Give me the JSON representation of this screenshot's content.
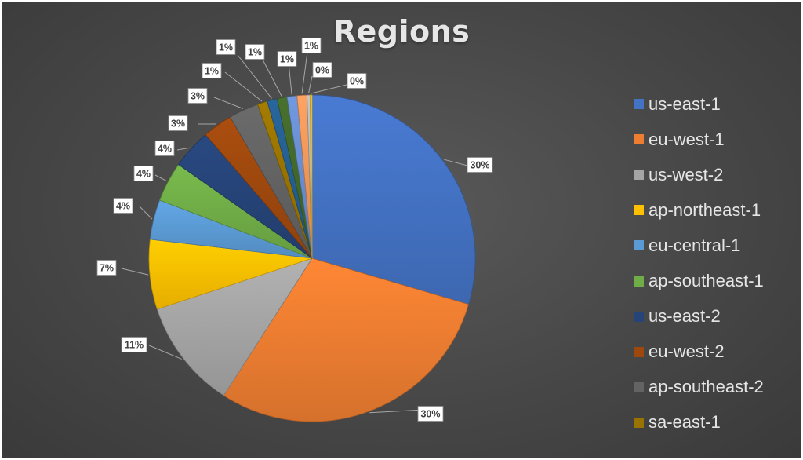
{
  "chart_data": {
    "type": "pie",
    "title": "Regions",
    "legend_position": "right",
    "slices": [
      {
        "label": "us-east-1",
        "value": 30,
        "display": "30%",
        "color": "#4472c4"
      },
      {
        "label": "eu-west-1",
        "value": 30,
        "display": "30%",
        "color": "#ed7d31"
      },
      {
        "label": "us-west-2",
        "value": 11,
        "display": "11%",
        "color": "#a5a5a5"
      },
      {
        "label": "ap-northeast-1",
        "value": 7,
        "display": "7%",
        "color": "#ffc000"
      },
      {
        "label": "eu-central-1",
        "value": 4,
        "display": "4%",
        "color": "#5b9bd5"
      },
      {
        "label": "ap-southeast-1",
        "value": 4,
        "display": "4%",
        "color": "#70ad47"
      },
      {
        "label": "us-east-2",
        "value": 4,
        "display": "4%",
        "color": "#264478"
      },
      {
        "label": "eu-west-2",
        "value": 3,
        "display": "3%",
        "color": "#9e480e"
      },
      {
        "label": "ap-southeast-2",
        "value": 3,
        "display": "3%",
        "color": "#636363"
      },
      {
        "label": "sa-east-1",
        "value": 1,
        "display": "1%",
        "color": "#997300"
      },
      {
        "label": "",
        "value": 1,
        "display": "1%",
        "color": "#255e91"
      },
      {
        "label": "",
        "value": 1,
        "display": "1%",
        "color": "#43682b"
      },
      {
        "label": "",
        "value": 1,
        "display": "1%",
        "color": "#698ed0"
      },
      {
        "label": "",
        "value": 1,
        "display": "1%",
        "color": "#f1975a"
      },
      {
        "label": "",
        "value": 0.3,
        "display": "0%",
        "color": "#b7b7b7"
      },
      {
        "label": "",
        "value": 0.2,
        "display": "0%",
        "color": "#ffcd33"
      }
    ]
  }
}
